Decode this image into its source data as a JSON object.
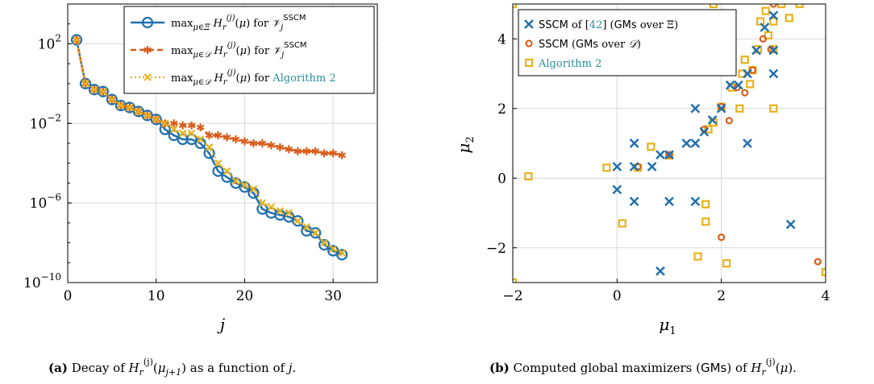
{
  "chart_data": [
    {
      "type": "line",
      "panel_label": "(a)",
      "caption": "Decay of H_r^(j)(μ_{j+1}) as a function of j.",
      "xlabel": "j",
      "ylabel": "",
      "xlim": [
        0,
        35
      ],
      "ylim_log10": [
        -10,
        4
      ],
      "y_scale": "log",
      "x_ticks": [
        0,
        10,
        20,
        30
      ],
      "y_ticks_log10": [
        -10,
        -6,
        -2,
        2
      ],
      "y_tick_labels": [
        "10",
        "10",
        "10",
        "10"
      ],
      "y_tick_exponents": [
        "−10",
        "−6",
        "−2",
        "2"
      ],
      "grid": true,
      "legend_position": "top-right",
      "series": [
        {
          "name": "max_{μ∈Ξ} H_r^(j)(μ) for V_j^SSCM",
          "color": "#1f6fae",
          "marker": "circle",
          "x": [
            1,
            2,
            3,
            4,
            5,
            6,
            7,
            8,
            9,
            10,
            11,
            12,
            13,
            14,
            15,
            16,
            17,
            18,
            19,
            20,
            21,
            22,
            23,
            24,
            25,
            26,
            27,
            28,
            29,
            30,
            31
          ],
          "log10_y": [
            2.2,
            0.0,
            -0.3,
            -0.4,
            -0.8,
            -1.1,
            -1.2,
            -1.4,
            -1.6,
            -1.8,
            -2.3,
            -2.6,
            -2.8,
            -2.8,
            -3.0,
            -3.5,
            -4.4,
            -4.7,
            -5.0,
            -5.2,
            -5.5,
            -6.3,
            -6.5,
            -6.6,
            -6.7,
            -6.9,
            -7.4,
            -7.5,
            -8.1,
            -8.4,
            -8.6
          ]
        },
        {
          "name": "max_{μ∈D} H_r^(j)(μ) for V_j^SSCM",
          "color": "#d95f1e",
          "marker": "asterisk",
          "x": [
            1,
            2,
            3,
            4,
            5,
            6,
            7,
            8,
            9,
            10,
            11,
            12,
            13,
            14,
            15,
            16,
            17,
            18,
            19,
            20,
            21,
            22,
            23,
            24,
            25,
            26,
            27,
            28,
            29,
            30,
            31
          ],
          "log10_y": [
            2.2,
            0.0,
            -0.3,
            -0.4,
            -0.8,
            -1.1,
            -1.2,
            -1.4,
            -1.6,
            -1.8,
            -2.0,
            -2.0,
            -2.1,
            -2.1,
            -2.2,
            -2.6,
            -2.6,
            -2.7,
            -2.8,
            -2.9,
            -3.0,
            -3.0,
            -3.1,
            -3.2,
            -3.3,
            -3.4,
            -3.4,
            -3.4,
            -3.5,
            -3.5,
            -3.6
          ]
        },
        {
          "name": "max_{μ∈D} H_r^(j)(μ) for Algorithm 2",
          "color": "#e8b21c",
          "marker": "cross",
          "x": [
            1,
            2,
            3,
            4,
            5,
            6,
            7,
            8,
            9,
            10,
            11,
            12,
            13,
            14,
            15,
            16,
            17,
            18,
            19,
            20,
            21,
            22,
            23,
            24,
            25,
            26,
            27,
            28,
            29,
            30,
            31
          ],
          "log10_y": [
            2.2,
            0.0,
            -0.3,
            -0.4,
            -0.8,
            -1.1,
            -1.2,
            -1.4,
            -1.6,
            -1.8,
            -2.0,
            -2.3,
            -2.5,
            -2.5,
            -2.8,
            -3.2,
            -4.0,
            -4.4,
            -4.9,
            -5.1,
            -5.3,
            -6.0,
            -6.2,
            -6.4,
            -6.5,
            -6.9,
            -7.2,
            -7.5,
            -8.0,
            -8.3,
            -8.5
          ]
        }
      ]
    },
    {
      "type": "scatter",
      "panel_label": "(b)",
      "caption": "Computed global maximizers (GMs) of H_r^(j)(μ).",
      "xlabel": "μ1",
      "ylabel": "μ2",
      "xlim": [
        -2,
        4
      ],
      "ylim": [
        -3,
        5
      ],
      "x_ticks": [
        -2,
        0,
        2,
        4
      ],
      "x_tick_labels": [
        "−2",
        "0",
        "2",
        "4"
      ],
      "y_ticks": [
        -2,
        0,
        2,
        4
      ],
      "y_tick_labels": [
        "−2",
        "0",
        "2",
        "4"
      ],
      "grid": true,
      "legend_position": "top-left",
      "series": [
        {
          "name": "SSCM of [42] (GMs over Ξ)",
          "color": "#1f6fae",
          "marker": "x",
          "points": [
            [
              0,
              0.33
            ],
            [
              0,
              -0.33
            ],
            [
              0.33,
              0.33
            ],
            [
              0.33,
              1
            ],
            [
              0.33,
              -0.67
            ],
            [
              0.67,
              0.33
            ],
            [
              1,
              0.67
            ],
            [
              1,
              -0.67
            ],
            [
              1.33,
              1
            ],
            [
              1.5,
              1
            ],
            [
              1.5,
              2
            ],
            [
              1.5,
              -0.67
            ],
            [
              1.67,
              1.33
            ],
            [
              1.83,
              1.67
            ],
            [
              2,
              2
            ],
            [
              2.17,
              2.67
            ],
            [
              2.33,
              2.67
            ],
            [
              2.5,
              3
            ],
            [
              2.5,
              1
            ],
            [
              2.67,
              3.67
            ],
            [
              2.83,
              4.33
            ],
            [
              3,
              4.67
            ],
            [
              3,
              3
            ],
            [
              3,
              3.67
            ],
            [
              3.33,
              -1.33
            ],
            [
              0.83,
              -2.67
            ],
            [
              0.83,
              0.67
            ]
          ]
        },
        {
          "name": "SSCM (GMs over D)",
          "color": "#d95f1e",
          "marker": "circle",
          "points": [
            [
              0.4,
              0.33
            ],
            [
              1,
              0.67
            ],
            [
              1.67,
              1.4
            ],
            [
              2,
              2.05
            ],
            [
              2.15,
              1.65
            ],
            [
              2.3,
              2.6
            ],
            [
              2.45,
              2.45
            ],
            [
              2.6,
              3.1
            ],
            [
              2.8,
              4.0
            ],
            [
              2.95,
              3.7
            ],
            [
              3.0,
              5.0
            ],
            [
              2.0,
              -1.7
            ],
            [
              3.85,
              -2.4
            ]
          ]
        },
        {
          "name": "Algorithm 2",
          "color": "#e8b21c",
          "marker": "square",
          "points": [
            [
              -2,
              5
            ],
            [
              -2,
              -3
            ],
            [
              -1.7,
              0.05
            ],
            [
              -0.2,
              0.3
            ],
            [
              0.1,
              -1.3
            ],
            [
              0.4,
              0.3
            ],
            [
              0.65,
              0.9
            ],
            [
              1.0,
              0.65
            ],
            [
              1.55,
              -2.25
            ],
            [
              1.7,
              -0.75
            ],
            [
              1.7,
              -1.25
            ],
            [
              1.75,
              1.4
            ],
            [
              1.85,
              1.6
            ],
            [
              1.85,
              5.0
            ],
            [
              2.0,
              2.05
            ],
            [
              2.1,
              -2.45
            ],
            [
              2.2,
              2.6
            ],
            [
              2.35,
              2.0
            ],
            [
              2.45,
              3.4
            ],
            [
              2.6,
              3.1
            ],
            [
              2.7,
              3.7
            ],
            [
              2.75,
              4.5
            ],
            [
              2.85,
              4.8
            ],
            [
              2.9,
              4.1
            ],
            [
              3.0,
              4.5
            ],
            [
              3.0,
              3.7
            ],
            [
              3.0,
              2.0
            ],
            [
              3.3,
              4.6
            ],
            [
              3.5,
              5.0
            ],
            [
              3.15,
              5.0
            ],
            [
              4.0,
              -2.7
            ],
            [
              2.55,
              2.7
            ],
            [
              2.4,
              3.0
            ]
          ]
        }
      ]
    }
  ]
}
